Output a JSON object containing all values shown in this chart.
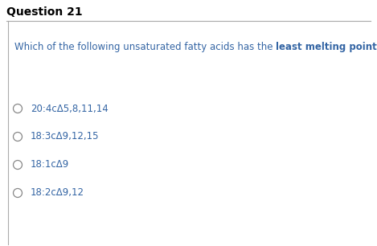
{
  "title": "Question 21",
  "question_normal": "Which of the following unsaturated fatty acids has the ",
  "question_bold": "least melting point?",
  "options": [
    "20:4cΔ5,8,11,14",
    "18:3cΔ9,12,15",
    "18:1cΔ9",
    "18:2cΔ9,12"
  ],
  "option_color": "#3465A4",
  "question_color": "#3465A4",
  "title_color": "#000000",
  "bg_color": "#ffffff",
  "border_color": "#aaaaaa",
  "title_fontsize": 10,
  "question_fontsize": 8.5,
  "option_fontsize": 8.5,
  "fig_width": 4.69,
  "fig_height": 3.06,
  "dpi": 100
}
